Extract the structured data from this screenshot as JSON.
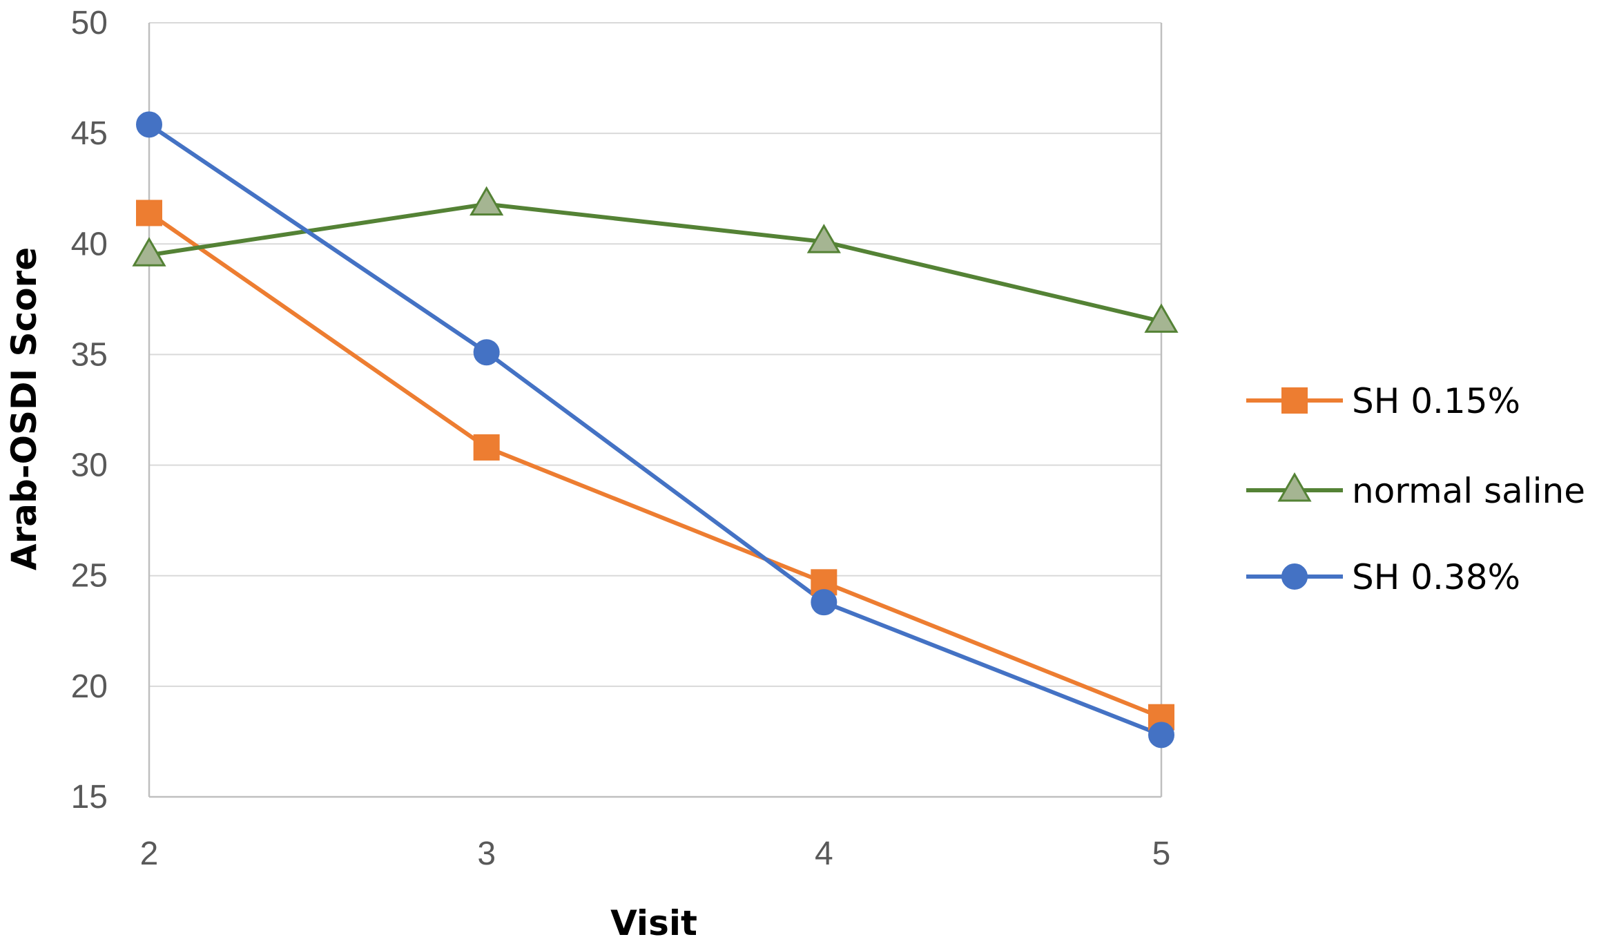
{
  "chart_data": {
    "type": "line",
    "title": "",
    "xlabel": "Visit",
    "ylabel": "Arab-OSDI Score",
    "x": [
      2,
      3,
      4,
      5
    ],
    "x_tick_labels": [
      "2",
      "3",
      "4",
      "5"
    ],
    "ylim": [
      15,
      50
    ],
    "y_ticks": [
      15,
      20,
      25,
      30,
      35,
      40,
      45,
      50
    ],
    "y_tick_labels": [
      "15",
      "20",
      "25",
      "30",
      "35",
      "40",
      "45",
      "50"
    ],
    "grid": true,
    "legend_position": "right",
    "series": [
      {
        "name": "SH 0.15%",
        "values": [
          41.4,
          30.8,
          24.7,
          18.6
        ],
        "color": "#ED7D31",
        "marker": "square"
      },
      {
        "name": "normal saline",
        "values": [
          39.5,
          41.8,
          40.1,
          36.5
        ],
        "color": "#548235",
        "marker_fill": "#A5B592",
        "marker": "triangle"
      },
      {
        "name": "SH 0.38%",
        "values": [
          45.4,
          35.1,
          23.8,
          17.8
        ],
        "color": "#4472C4",
        "marker": "circle"
      }
    ],
    "gridline_color": "#D9D9D9",
    "axis_color": "#BFBFBF"
  }
}
